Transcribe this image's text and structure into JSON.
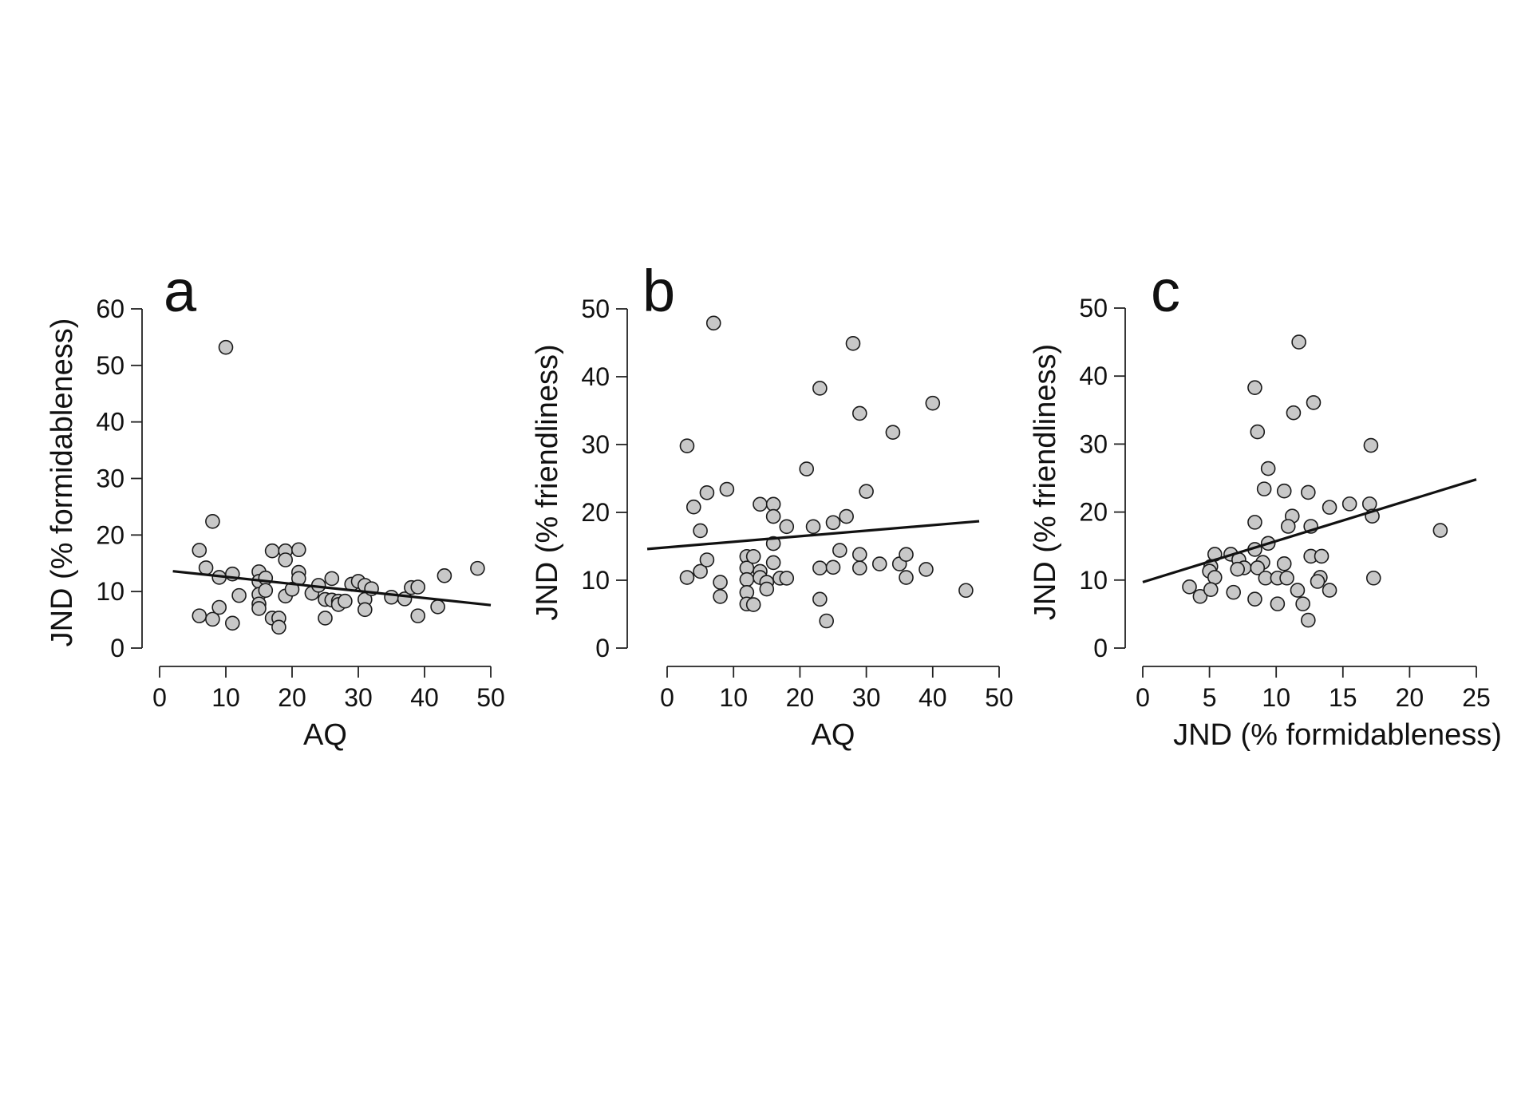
{
  "colors": {
    "point_fill": "#c8c8c8",
    "point_stroke": "#1a1a1a",
    "line": "#111111",
    "axis": "#222222"
  },
  "chart_data": [
    {
      "panel": "a",
      "type": "scatter",
      "xlabel": "AQ",
      "ylabel": "JND (% formidableness)",
      "xlim": [
        0,
        50
      ],
      "ylim": [
        0,
        60
      ],
      "xticks": [
        0,
        10,
        20,
        30,
        40,
        50
      ],
      "yticks": [
        0,
        10,
        20,
        30,
        40,
        50,
        60
      ],
      "grid": false,
      "trend": {
        "x": [
          2,
          50
        ],
        "y": [
          13.6,
          7.6
        ]
      },
      "points": [
        [
          10,
          53.2
        ],
        [
          8,
          22.4
        ],
        [
          6,
          17.3
        ],
        [
          7,
          14.2
        ],
        [
          9,
          12.5
        ],
        [
          11,
          13.1
        ],
        [
          6,
          5.7
        ],
        [
          8,
          5.1
        ],
        [
          9,
          7.2
        ],
        [
          11,
          4.4
        ],
        [
          12,
          9.3
        ],
        [
          15,
          13.5
        ],
        [
          15,
          11.8
        ],
        [
          16,
          12.4
        ],
        [
          15,
          9.5
        ],
        [
          16,
          10.2
        ],
        [
          15,
          7.8
        ],
        [
          15,
          7.0
        ],
        [
          17,
          17.2
        ],
        [
          19,
          17.2
        ],
        [
          21,
          17.4
        ],
        [
          19,
          15.6
        ],
        [
          21,
          13.4
        ],
        [
          21,
          12.3
        ],
        [
          17,
          5.3
        ],
        [
          18,
          5.3
        ],
        [
          18,
          3.7
        ],
        [
          19,
          9.2
        ],
        [
          20,
          10.4
        ],
        [
          23,
          9.7
        ],
        [
          24,
          11.1
        ],
        [
          25,
          8.6
        ],
        [
          25,
          5.3
        ],
        [
          26,
          12.3
        ],
        [
          26,
          8.5
        ],
        [
          27,
          8.3
        ],
        [
          27,
          7.7
        ],
        [
          28,
          8.3
        ],
        [
          29,
          11.3
        ],
        [
          30,
          11.8
        ],
        [
          31,
          11.1
        ],
        [
          31,
          8.6
        ],
        [
          31,
          6.8
        ],
        [
          32,
          10.5
        ],
        [
          35,
          9.0
        ],
        [
          37,
          8.7
        ],
        [
          38,
          10.7
        ],
        [
          39,
          10.8
        ],
        [
          39,
          5.7
        ],
        [
          42,
          7.3
        ],
        [
          43,
          12.8
        ],
        [
          48,
          14.1
        ]
      ]
    },
    {
      "panel": "b",
      "type": "scatter",
      "xlabel": "AQ",
      "ylabel": "JND (% friendliness)",
      "xlim": [
        0,
        50
      ],
      "ylim": [
        0,
        50
      ],
      "xticks": [
        0,
        10,
        20,
        30,
        40,
        50
      ],
      "yticks": [
        0,
        10,
        20,
        30,
        40,
        50
      ],
      "grid": false,
      "trend": {
        "x": [
          -3,
          47
        ],
        "y": [
          14.6,
          18.7
        ]
      },
      "points": [
        [
          7,
          47.9
        ],
        [
          3,
          29.8
        ],
        [
          4,
          20.8
        ],
        [
          5,
          17.3
        ],
        [
          6,
          22.9
        ],
        [
          9,
          23.4
        ],
        [
          3,
          10.4
        ],
        [
          5,
          11.3
        ],
        [
          6,
          13.0
        ],
        [
          8,
          9.7
        ],
        [
          8,
          7.6
        ],
        [
          12,
          13.5
        ],
        [
          12,
          11.8
        ],
        [
          12,
          10.1
        ],
        [
          12,
          8.2
        ],
        [
          12,
          6.5
        ],
        [
          13,
          13.5
        ],
        [
          13,
          6.4
        ],
        [
          14,
          21.2
        ],
        [
          14,
          11.3
        ],
        [
          14,
          10.4
        ],
        [
          15,
          9.7
        ],
        [
          15,
          8.7
        ],
        [
          16,
          21.2
        ],
        [
          16,
          19.4
        ],
        [
          16,
          15.4
        ],
        [
          16,
          12.6
        ],
        [
          17,
          10.3
        ],
        [
          18,
          17.9
        ],
        [
          18,
          10.3
        ],
        [
          21,
          26.4
        ],
        [
          22,
          17.9
        ],
        [
          23,
          38.3
        ],
        [
          23,
          11.8
        ],
        [
          23,
          7.2
        ],
        [
          24,
          4.0
        ],
        [
          25,
          18.5
        ],
        [
          25,
          11.9
        ],
        [
          26,
          14.4
        ],
        [
          27,
          19.4
        ],
        [
          28,
          44.9
        ],
        [
          29,
          34.6
        ],
        [
          29,
          13.8
        ],
        [
          29,
          11.8
        ],
        [
          30,
          23.1
        ],
        [
          32,
          12.4
        ],
        [
          34,
          31.8
        ],
        [
          35,
          12.4
        ],
        [
          36,
          13.8
        ],
        [
          36,
          10.4
        ],
        [
          39,
          11.6
        ],
        [
          40,
          36.1
        ],
        [
          45,
          8.5
        ]
      ]
    },
    {
      "panel": "c",
      "type": "scatter",
      "xlabel": "JND (% formidableness)",
      "ylabel": "JND (% friendliness)",
      "xlim": [
        0,
        25
      ],
      "ylim": [
        0,
        50
      ],
      "xticks": [
        0,
        5,
        10,
        15,
        20,
        25
      ],
      "yticks": [
        0,
        10,
        20,
        30,
        40,
        50
      ],
      "grid": false,
      "trend": {
        "x": [
          0,
          25
        ],
        "y": [
          9.7,
          24.8
        ]
      },
      "points": [
        [
          11.7,
          45.0
        ],
        [
          8.4,
          38.3
        ],
        [
          12.8,
          36.1
        ],
        [
          11.3,
          34.6
        ],
        [
          8.6,
          31.8
        ],
        [
          17.1,
          29.8
        ],
        [
          9.4,
          26.4
        ],
        [
          9.1,
          23.4
        ],
        [
          10.6,
          23.1
        ],
        [
          12.4,
          22.9
        ],
        [
          15.5,
          21.2
        ],
        [
          14.0,
          20.7
        ],
        [
          17.0,
          21.2
        ],
        [
          17.2,
          19.4
        ],
        [
          11.2,
          19.4
        ],
        [
          8.4,
          18.5
        ],
        [
          10.9,
          17.9
        ],
        [
          12.6,
          17.9
        ],
        [
          22.3,
          17.3
        ],
        [
          9.4,
          15.4
        ],
        [
          8.4,
          14.5
        ],
        [
          5.4,
          13.8
        ],
        [
          6.6,
          13.8
        ],
        [
          9.0,
          12.6
        ],
        [
          7.2,
          13.0
        ],
        [
          12.6,
          13.5
        ],
        [
          13.4,
          13.5
        ],
        [
          5.1,
          12.0
        ],
        [
          5.0,
          11.3
        ],
        [
          7.6,
          11.8
        ],
        [
          8.6,
          11.8
        ],
        [
          7.1,
          11.6
        ],
        [
          10.6,
          12.4
        ],
        [
          5.4,
          10.4
        ],
        [
          9.2,
          10.3
        ],
        [
          10.1,
          10.3
        ],
        [
          10.8,
          10.3
        ],
        [
          13.3,
          10.4
        ],
        [
          13.1,
          9.8
        ],
        [
          17.3,
          10.3
        ],
        [
          3.5,
          9.0
        ],
        [
          4.3,
          7.6
        ],
        [
          5.1,
          8.6
        ],
        [
          6.8,
          8.2
        ],
        [
          8.4,
          7.2
        ],
        [
          10.1,
          6.5
        ],
        [
          11.6,
          8.5
        ],
        [
          12.0,
          6.5
        ],
        [
          12.4,
          4.1
        ],
        [
          14.0,
          8.5
        ]
      ]
    }
  ]
}
